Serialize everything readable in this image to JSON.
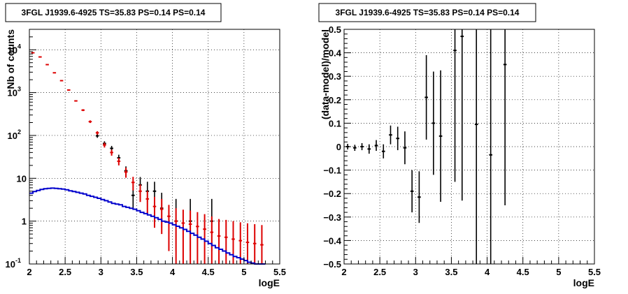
{
  "chart_data": [
    {
      "type": "scatter",
      "title": "3FGL J1939.6-4925 TS=35.83 PS=0.14 PS=0.14",
      "xlabel": "logE",
      "ylabel": "Nb of counts",
      "xlim": [
        2,
        5.5
      ],
      "ylim": [
        0.1,
        30000
      ],
      "log_y": true,
      "grid": true,
      "x_ticks": [
        "2",
        "2.5",
        "3",
        "3.5",
        "4",
        "4.5",
        "5",
        "5.5"
      ],
      "y_ticks": [
        {
          "value": 0.1,
          "label": "10",
          "exp": "-1"
        },
        {
          "value": 1,
          "label": "1",
          "exp": ""
        },
        {
          "value": 10,
          "label": "10",
          "exp": ""
        },
        {
          "value": 100,
          "label": "10",
          "exp": "2"
        },
        {
          "value": 1000,
          "label": "10",
          "exp": "3"
        },
        {
          "value": 10000,
          "label": "10",
          "exp": "4"
        }
      ],
      "series": [
        {
          "color": "#000000",
          "style": "errorbar",
          "x": [
            2.95,
            3.05,
            3.15,
            3.25,
            3.35,
            3.45,
            3.55,
            3.65,
            3.75,
            3.85,
            4.05,
            4.25,
            4.55
          ],
          "y": [
            98,
            65,
            50,
            30,
            15,
            4,
            7,
            5,
            5,
            2,
            1,
            1,
            1
          ],
          "yerr_low": [
            10,
            8,
            7,
            5.5,
            4,
            2,
            2.7,
            2.2,
            2.2,
            1.3,
            0.8,
            0.8,
            0.8
          ],
          "yerr_high": [
            10,
            8,
            7,
            5.5,
            4,
            3.2,
            3.7,
            3.3,
            3.3,
            2.6,
            2.3,
            2.3,
            2.3
          ]
        },
        {
          "color": "#dd0000",
          "style": "model_errorbar",
          "x": [
            2.05,
            2.15,
            2.25,
            2.35,
            2.45,
            2.55,
            2.65,
            2.75,
            2.85,
            2.95,
            3.05,
            3.15,
            3.25,
            3.35,
            3.45,
            3.55,
            3.65,
            3.75,
            3.85,
            3.95,
            4.05,
            4.15,
            4.25,
            4.35,
            4.45,
            4.55,
            4.65,
            4.75,
            4.85,
            4.95,
            5.05,
            5.15,
            5.25
          ],
          "y": [
            8500,
            6800,
            4500,
            2900,
            1900,
            1150,
            640,
            390,
            210,
            115,
            60,
            40,
            25,
            14,
            8,
            5,
            3.3,
            2.2,
            1.9,
            1.3,
            1.0,
            0.9,
            0.85,
            0.75,
            0.65,
            0.55,
            0.45,
            0.42,
            0.38,
            0.35,
            0.32,
            0.3,
            0.28
          ],
          "yerr": [
            92,
            82,
            67,
            54,
            44,
            34,
            25,
            20,
            14.5,
            10.7,
            7.7,
            6.3,
            5,
            3.7,
            2.8,
            2.2,
            1.8,
            1.5,
            1.4,
            1.1,
            1,
            0.95,
            0.92,
            0.87,
            0.81,
            0.74,
            0.67,
            0.65,
            0.62,
            0.59,
            0.57,
            0.55,
            0.53
          ]
        },
        {
          "color": "#0000cc",
          "style": "histogram",
          "edges": [
            2.0,
            2.05,
            2.1,
            2.15,
            2.2,
            2.25,
            2.3,
            2.35,
            2.4,
            2.45,
            2.5,
            2.55,
            2.6,
            2.65,
            2.7,
            2.75,
            2.8,
            2.85,
            2.9,
            2.95,
            3.0,
            3.05,
            3.1,
            3.15,
            3.2,
            3.25,
            3.3,
            3.35,
            3.4,
            3.45,
            3.5,
            3.55,
            3.6,
            3.65,
            3.7,
            3.75,
            3.8,
            3.85,
            3.9,
            3.95,
            4.0,
            4.05,
            4.1,
            4.15,
            4.2,
            4.25,
            4.3,
            4.35,
            4.4,
            4.45,
            4.5,
            4.55,
            4.6,
            4.65,
            4.7,
            4.75,
            4.8,
            4.85,
            4.9,
            4.95,
            5.0,
            5.05,
            5.1,
            5.15,
            5.2,
            5.25,
            5.3
          ],
          "values": [
            4.5,
            4.9,
            5.2,
            5.5,
            5.7,
            5.8,
            5.9,
            5.8,
            5.7,
            5.6,
            5.4,
            5.1,
            4.9,
            4.7,
            4.5,
            4.3,
            4.0,
            3.8,
            3.6,
            3.4,
            3.2,
            3.0,
            2.8,
            2.6,
            2.5,
            2.4,
            2.2,
            2.1,
            2.0,
            1.9,
            1.75,
            1.6,
            1.5,
            1.4,
            1.3,
            1.2,
            1.1,
            1.0,
            0.95,
            0.9,
            0.82,
            0.76,
            0.7,
            0.64,
            0.58,
            0.52,
            0.47,
            0.42,
            0.38,
            0.34,
            0.3,
            0.27,
            0.24,
            0.22,
            0.2,
            0.18,
            0.165,
            0.15,
            0.14,
            0.13,
            0.12,
            0.11,
            0.105,
            0.1,
            0.1,
            0.1
          ]
        }
      ]
    },
    {
      "type": "scatter",
      "title": "3FGL J1939.6-4925 TS=35.83 PS=0.14 PS=0.14",
      "xlabel": "logE",
      "ylabel": "(data-model)/model",
      "xlim": [
        2,
        5.5
      ],
      "ylim": [
        -0.5,
        0.5
      ],
      "grid": true,
      "x_ticks": [
        "2",
        "2.5",
        "3",
        "3.5",
        "4",
        "4.5",
        "5",
        "5.5"
      ],
      "y_ticks": [
        "−0.5",
        "−0.4",
        "−0.3",
        "−0.2",
        "−0.1",
        "0",
        "0.1",
        "0.2",
        "0.3",
        "0.4",
        "0.5"
      ],
      "series": [
        {
          "color": "#000000",
          "style": "errorbar",
          "x": [
            2.05,
            2.15,
            2.25,
            2.35,
            2.45,
            2.55,
            2.65,
            2.75,
            2.85,
            2.95,
            3.05,
            3.15,
            3.25,
            3.35,
            3.55,
            3.65,
            3.85,
            4.05,
            4.25
          ],
          "y": [
            0.0,
            -0.005,
            0.0,
            -0.01,
            0.005,
            -0.02,
            0.05,
            0.035,
            -0.005,
            -0.19,
            -0.215,
            0.21,
            0.1,
            0.045,
            0.41,
            0.47,
            0.095,
            -0.035,
            0.35
          ],
          "yerr_low": [
            0.012,
            0.013,
            0.015,
            0.02,
            0.023,
            0.03,
            0.04,
            0.05,
            0.07,
            0.09,
            0.11,
            0.18,
            0.22,
            0.28,
            0.56,
            0.7,
            0.6,
            0.6,
            0.6
          ],
          "yerr_high": [
            0.012,
            0.013,
            0.015,
            0.02,
            0.023,
            0.03,
            0.04,
            0.05,
            0.07,
            0.09,
            0.11,
            0.18,
            0.22,
            0.28,
            0.56,
            0.7,
            0.6,
            0.6,
            0.6
          ]
        }
      ]
    }
  ]
}
